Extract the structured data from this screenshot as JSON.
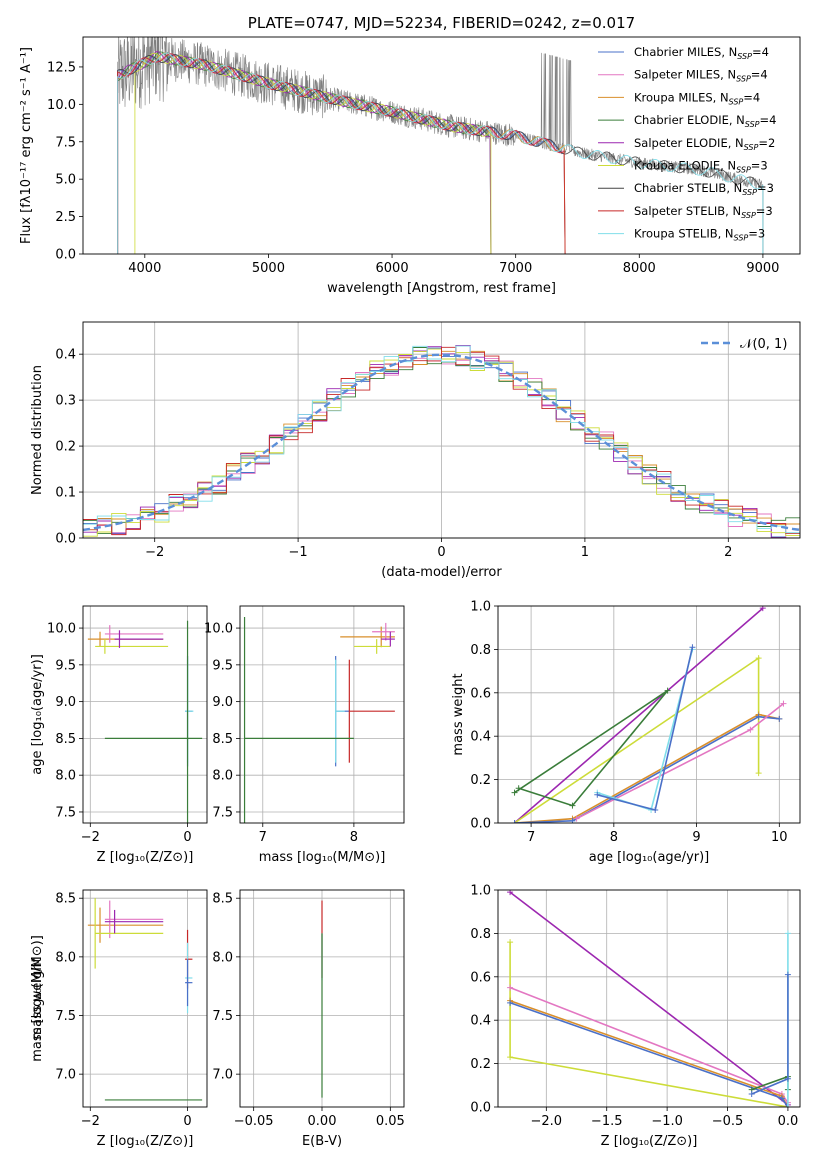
{
  "chart_data": [
    {
      "id": "spectrum",
      "type": "line",
      "title": "PLATE=0747, MJD=52234, FIBERID=0242, z=0.017",
      "xlabel": "wavelength [Angstrom, rest frame]",
      "ylabel": "Flux [fλ10⁻¹⁷ erg cm⁻² s⁻¹ A⁻¹]",
      "xlim": [
        3500,
        9300
      ],
      "ylim": [
        0,
        14.5
      ],
      "xticks": [
        4000,
        5000,
        6000,
        7000,
        8000,
        9000
      ],
      "yticks": [
        0.0,
        2.5,
        5.0,
        7.5,
        10.0,
        12.5
      ],
      "grid": false,
      "legend_position": "top-right",
      "data_trend": {
        "x": [
          3800,
          4100,
          4500,
          5000,
          5500,
          6000,
          6500,
          7000,
          7500,
          8000,
          8500,
          9000
        ],
        "y": [
          12.0,
          13.2,
          12.6,
          11.4,
          10.4,
          9.5,
          8.5,
          7.9,
          6.8,
          6.1,
          5.6,
          4.6
        ]
      },
      "series": [
        {
          "name": "Chabrier MILES, N",
          "sub": "SSP",
          "suffix": "=4",
          "color": "#4a70c8",
          "xmax": 7400
        },
        {
          "name": "Salpeter MILES, N",
          "sub": "SSP",
          "suffix": "=4",
          "color": "#e377c2",
          "xmax": 7400
        },
        {
          "name": "Kroupa MILES, N",
          "sub": "SSP",
          "suffix": "=4",
          "color": "#d98f2b",
          "xmax": 7400
        },
        {
          "name": "Chabrier ELODIE, N",
          "sub": "SSP",
          "suffix": "=4",
          "color": "#3a7d3a",
          "xmax": 6800
        },
        {
          "name": "Salpeter ELODIE, N",
          "sub": "SSP",
          "suffix": "=2",
          "color": "#9c27b0",
          "xmax": 6800
        },
        {
          "name": "Kroupa ELODIE, N",
          "sub": "SSP",
          "suffix": "=3",
          "color": "#cddc39",
          "xmax": 6800
        },
        {
          "name": "Chabrier STELIB, N",
          "sub": "SSP",
          "suffix": "=3",
          "color": "#444444",
          "xmax": 9000
        },
        {
          "name": "Salpeter STELIB, N",
          "sub": "SSP",
          "suffix": "=3",
          "color": "#c62828",
          "xmax": 7400
        },
        {
          "name": "Kroupa STELIB, N",
          "sub": "SSP",
          "suffix": "=3",
          "color": "#80deea",
          "xmax": 9000
        }
      ]
    },
    {
      "id": "residuals",
      "type": "line",
      "title": "",
      "xlabel": "(data-model)/error",
      "ylabel": "Normed distribution",
      "xlim": [
        -2.5,
        2.5
      ],
      "ylim": [
        0,
        0.47
      ],
      "xticks": [
        -2,
        -1,
        0,
        1,
        2
      ],
      "yticks": [
        0.0,
        0.1,
        0.2,
        0.3,
        0.4
      ],
      "grid": true,
      "legend_position": "top-right",
      "legend": "𝒩(0, 1)",
      "normal_curve": {
        "mean": 0,
        "sigma": 1,
        "color": "#5b8fd8"
      },
      "histogram_colors": [
        "#4a70c8",
        "#e377c2",
        "#d98f2b",
        "#3a7d3a",
        "#9c27b0",
        "#cddc39",
        "#c62828",
        "#80deea"
      ]
    },
    {
      "id": "z-age",
      "type": "scatter",
      "xlabel": "Z [log₁₀(Z/Z⊙)]",
      "ylabel": "age  [log₁₀(age/yr)]",
      "xlim": [
        -2.15,
        0.4
      ],
      "ylim": [
        7.35,
        10.3
      ],
      "xticks": [
        -2,
        0
      ],
      "yticks": [
        7.5,
        8.0,
        8.5,
        9.0,
        9.5,
        10.0
      ],
      "grid": true,
      "points": [
        {
          "x": -1.8,
          "y": 9.85,
          "xerr": 0.0,
          "yerr": 0.1,
          "color": "#d98f2b",
          "hx": [
            -2.05,
            -0.5
          ]
        },
        {
          "x": -1.6,
          "y": 9.92,
          "yerr": 0.12,
          "color": "#e377c2",
          "hx": [
            -1.7,
            -0.5
          ]
        },
        {
          "x": -1.7,
          "y": 9.75,
          "yerr": 0.1,
          "color": "#cddc39",
          "hx": [
            -1.9,
            -0.4
          ]
        },
        {
          "x": -1.4,
          "y": 9.85,
          "yerr": 0.12,
          "color": "#9c27b0",
          "hx": [
            -1.5,
            -0.5
          ]
        },
        {
          "x": 0.0,
          "y": 8.87,
          "yerr": 0.75,
          "color": "#4a70c8",
          "hx": [
            -0.05,
            0.1
          ]
        },
        {
          "x": 0.0,
          "y": 8.87,
          "yerr": 0.7,
          "color": "#80deea",
          "hx": [
            -0.05,
            0.12
          ]
        },
        {
          "x": 0.0,
          "y": 8.5,
          "yerr": 1.6,
          "color": "#3a7d3a",
          "hx": [
            -1.7,
            0.3
          ]
        }
      ]
    },
    {
      "id": "mass-age",
      "type": "scatter",
      "xlabel": "mass [log₁₀(M/M⊙)]",
      "ylabel": "",
      "xlim": [
        6.75,
        8.55
      ],
      "ylim": [
        7.35,
        10.3
      ],
      "xticks": [
        7,
        8
      ],
      "yticks": [
        7.5,
        8.0,
        8.5,
        9.0,
        9.5,
        10.0
      ],
      "grid": true,
      "points": [
        {
          "x": 8.3,
          "y": 9.88,
          "yerr": 0.14,
          "color": "#d98f2b",
          "hx": [
            7.85,
            8.45
          ]
        },
        {
          "x": 8.35,
          "y": 9.95,
          "yerr": 0.12,
          "color": "#e377c2",
          "hx": [
            8.2,
            8.45
          ]
        },
        {
          "x": 8.25,
          "y": 9.75,
          "yerr": 0.1,
          "color": "#cddc39",
          "hx": [
            8.0,
            8.4
          ]
        },
        {
          "x": 8.4,
          "y": 9.85,
          "yerr": 0.1,
          "color": "#9c27b0",
          "hx": [
            8.3,
            8.45
          ]
        },
        {
          "x": 7.8,
          "y": 8.87,
          "yerr": 0.75,
          "color": "#4a70c8",
          "hx": [
            7.8,
            7.95
          ]
        },
        {
          "x": 7.95,
          "y": 8.87,
          "yerr": 0.7,
          "color": "#c62828",
          "hx": [
            7.95,
            8.45
          ]
        },
        {
          "x": 7.8,
          "y": 8.87,
          "yerr": 0.7,
          "color": "#80deea",
          "hx": [
            7.8,
            7.9
          ]
        },
        {
          "x": 6.8,
          "y": 8.5,
          "yerr": 1.65,
          "color": "#3a7d3a",
          "hx": [
            6.8,
            8.0
          ]
        }
      ]
    },
    {
      "id": "age-weight",
      "type": "line",
      "xlabel": "age  [log₁₀(age/yr)]",
      "ylabel": "mass weight",
      "xlim": [
        6.6,
        10.25
      ],
      "ylim": [
        0,
        1.0
      ],
      "xticks": [
        7,
        8,
        9,
        10
      ],
      "yticks": [
        0.0,
        0.2,
        0.4,
        0.6,
        0.8,
        1.0
      ],
      "grid": true,
      "series": [
        {
          "color": "#9c27b0",
          "x": [
            6.8,
            9.8
          ],
          "y": [
            0.0,
            0.99
          ]
        },
        {
          "color": "#cddc39",
          "x": [
            6.8,
            9.75,
            9.75
          ],
          "y": [
            0.0,
            0.76,
            0.23
          ]
        },
        {
          "color": "#d98f2b",
          "x": [
            6.8,
            7.5,
            9.75,
            10.0
          ],
          "y": [
            0.0,
            0.02,
            0.5,
            0.48
          ]
        },
        {
          "color": "#4a70c8",
          "x": [
            6.8,
            7.5,
            9.75,
            10.0
          ],
          "y": [
            0.0,
            0.01,
            0.49,
            0.48
          ]
        },
        {
          "color": "#e377c2",
          "x": [
            7.55,
            9.65,
            10.05
          ],
          "y": [
            0.02,
            0.43,
            0.55
          ]
        },
        {
          "color": "#3a7d3a",
          "x": [
            6.85,
            7.5,
            8.65,
            6.8
          ],
          "y": [
            0.16,
            0.08,
            0.61,
            0.14
          ]
        },
        {
          "color": "#80deea",
          "x": [
            7.8,
            8.45,
            8.95
          ],
          "y": [
            0.14,
            0.06,
            0.8
          ]
        },
        {
          "color": "#4a70c8",
          "x": [
            7.8,
            8.5,
            8.95
          ],
          "y": [
            0.13,
            0.06,
            0.81
          ]
        }
      ]
    },
    {
      "id": "z-mass",
      "type": "scatter",
      "xlabel": "Z [log₁₀(Z/Z⊙)]",
      "ylabel": "mass [log₁₀(M/M⊙)]",
      "xlim": [
        -2.15,
        0.4
      ],
      "ylim": [
        6.72,
        8.57
      ],
      "xticks": [
        -2,
        0
      ],
      "yticks": [
        7.0,
        7.5,
        8.0,
        8.5
      ],
      "grid": true,
      "points": [
        {
          "x": -1.8,
          "y": 8.27,
          "yerr": 0.15,
          "color": "#d98f2b",
          "hx": [
            -2.05,
            -0.5
          ]
        },
        {
          "x": -1.6,
          "y": 8.32,
          "yerr": 0.16,
          "color": "#e377c2",
          "hx": [
            -1.7,
            -0.5
          ]
        },
        {
          "x": -1.9,
          "y": 8.2,
          "yerr": 0.3,
          "color": "#cddc39",
          "hx": [
            -1.9,
            -0.5
          ]
        },
        {
          "x": -1.5,
          "y": 8.3,
          "yerr": 0.1,
          "color": "#9c27b0",
          "hx": [
            -1.7,
            -0.5
          ]
        },
        {
          "x": 0.0,
          "y": 7.98,
          "yerr": 0.25,
          "color": "#c62828",
          "hx": [
            -0.05,
            0.1
          ]
        },
        {
          "x": 0.0,
          "y": 7.82,
          "yerr": 0.3,
          "color": "#80deea",
          "hx": [
            -0.05,
            0.1
          ]
        },
        {
          "x": 0.0,
          "y": 7.78,
          "yerr": 0.2,
          "color": "#4a70c8",
          "hx": [
            -0.05,
            0.1
          ]
        },
        {
          "x": 0.0,
          "y": 6.78,
          "yerr": 0.0,
          "color": "#3a7d3a",
          "hx": [
            -1.7,
            0.3
          ]
        }
      ]
    },
    {
      "id": "ebv-mass",
      "type": "scatter",
      "xlabel": "E(B-V)",
      "ylabel": "",
      "xlim": [
        -0.06,
        0.06
      ],
      "ylim": [
        6.72,
        8.57
      ],
      "xticks": [
        -0.05,
        0.0,
        0.05
      ],
      "xticklabels": [
        "−0.05",
        "0.00",
        "0.05"
      ],
      "yticks": [
        7.0,
        7.5,
        8.0,
        8.5
      ],
      "grid": true,
      "points": [
        {
          "x": 0.0,
          "y": 8.15,
          "yerr": 0.33,
          "color": "#c62828"
        },
        {
          "x": 0.0,
          "y": 8.0,
          "yerr": 0.2,
          "color": "#80deea"
        },
        {
          "x": 0.0,
          "y": 7.5,
          "yerr": 0.7,
          "color": "#3a7d3a"
        }
      ]
    },
    {
      "id": "z-weight",
      "type": "line",
      "xlabel": "Z [log₁₀(Z/Z⊙)]",
      "ylabel": "mass weight",
      "xlim": [
        -2.4,
        0.1
      ],
      "ylim": [
        0,
        1.0
      ],
      "xticks": [
        -2.0,
        -1.5,
        -1.0,
        -0.5,
        0.0
      ],
      "xticklabels": [
        "−2.0",
        "−1.5",
        "−1.0",
        "−0.5",
        "0.0"
      ],
      "yticks": [
        0.0,
        0.2,
        0.4,
        0.6,
        0.8,
        1.0
      ],
      "grid": true,
      "series": [
        {
          "color": "#9c27b0",
          "x": [
            -2.3,
            0.0
          ],
          "y": [
            0.99,
            0.01
          ]
        },
        {
          "color": "#cddc39",
          "x": [
            -2.3,
            -2.3,
            0.0
          ],
          "y": [
            0.76,
            0.23,
            0.0
          ]
        },
        {
          "color": "#e377c2",
          "x": [
            -2.3,
            -0.05,
            0.0
          ],
          "y": [
            0.55,
            0.06,
            0.02
          ]
        },
        {
          "color": "#d98f2b",
          "x": [
            -2.3,
            -0.05,
            0.0
          ],
          "y": [
            0.49,
            0.05,
            0.0
          ]
        },
        {
          "color": "#4a70c8",
          "x": [
            -2.3,
            -0.05,
            0.0
          ],
          "y": [
            0.48,
            0.04,
            0.0
          ]
        },
        {
          "color": "#3a7d3a",
          "x": [
            -0.3,
            0.0,
            0.0
          ],
          "y": [
            0.08,
            0.14,
            0.08
          ]
        },
        {
          "color": "#80deea",
          "x": [
            0.0,
            0.0,
            0.0
          ],
          "y": [
            0.0,
            0.8,
            0.0
          ]
        },
        {
          "color": "#4a70c8",
          "x": [
            -0.3,
            0.0,
            0.0
          ],
          "y": [
            0.06,
            0.13,
            0.61
          ]
        }
      ]
    }
  ]
}
